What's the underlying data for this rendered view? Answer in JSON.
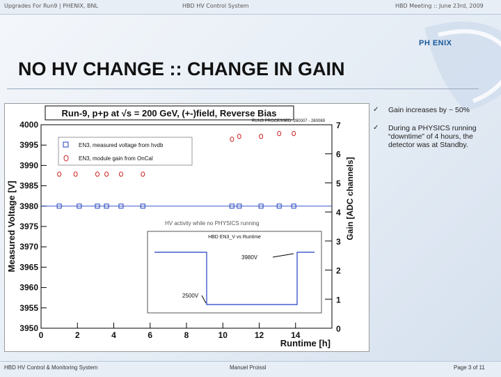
{
  "header": {
    "left": "Upgrades For Run9 | PHENIX, BNL",
    "center": "HBD HV Control System",
    "right": "HBD Meeting :: June 23rd, 2009"
  },
  "logo": "PH  ENIX",
  "slide_title": "NO HV CHANGE :: CHANGE IN GAIN",
  "bullets": [
    "Gain increases by ~ 50%",
    "During a PHYSICS running “downtime” of 4 hours, the detector was at Standby."
  ],
  "footer": {
    "left": "HBD HV Control & Monitoring System",
    "center": "Manuel Proissl",
    "right": "Page 3 of 11"
  },
  "chart_data": {
    "type": "scatter",
    "title": "Run-9, p+p at √s = 200 GeV, (+-)field, Reverse Bias",
    "subtitle": "RUNS PROCESSED: 280007 - 280069",
    "xlabel": "Runtime [h]",
    "ylabel": "Measured Voltage [V]",
    "y2label": "Gain [ADC channels]",
    "xlim": [
      0,
      16
    ],
    "ylim": [
      3950,
      4000
    ],
    "y2lim": [
      0,
      7
    ],
    "x_ticks": [
      "0",
      "2",
      "4",
      "6",
      "8",
      "10",
      "12",
      "14"
    ],
    "y_ticks": [
      "3950",
      "3955",
      "3960",
      "3965",
      "3970",
      "3975",
      "3980",
      "3985",
      "3990",
      "3995",
      "4000"
    ],
    "y2_ticks": [
      "0",
      "1",
      "2",
      "3",
      "4",
      "5",
      "6",
      "7"
    ],
    "series": [
      {
        "name": "EN3, measured voltage from hvdb",
        "marker": "square",
        "color": "#1f3fbf",
        "x": [
          1,
          2.1,
          3.1,
          3.6,
          4.4,
          5.6,
          10.5,
          10.9,
          12.1,
          13.1,
          13.9
        ],
        "y": [
          3980,
          3980,
          3980,
          3980,
          3980,
          3980,
          3980,
          3980,
          3980,
          3980,
          3980
        ]
      },
      {
        "name": "EN3, module gain from OnCal",
        "marker": "circle",
        "color": "#d02020",
        "x": [
          1,
          1.9,
          3.1,
          3.6,
          4.4,
          5.6,
          10.5,
          10.9,
          12.1,
          13.1,
          13.9
        ],
        "y": [
          5.3,
          5.3,
          5.3,
          5.3,
          5.3,
          5.3,
          6.5,
          6.6,
          6.6,
          6.7,
          6.7
        ]
      }
    ],
    "annotation": "HV activity while no PHYSICS running",
    "inset": {
      "title": "HBD EN3_V vs Runtime",
      "label_high": "3980V",
      "label_low": "2500V"
    }
  }
}
